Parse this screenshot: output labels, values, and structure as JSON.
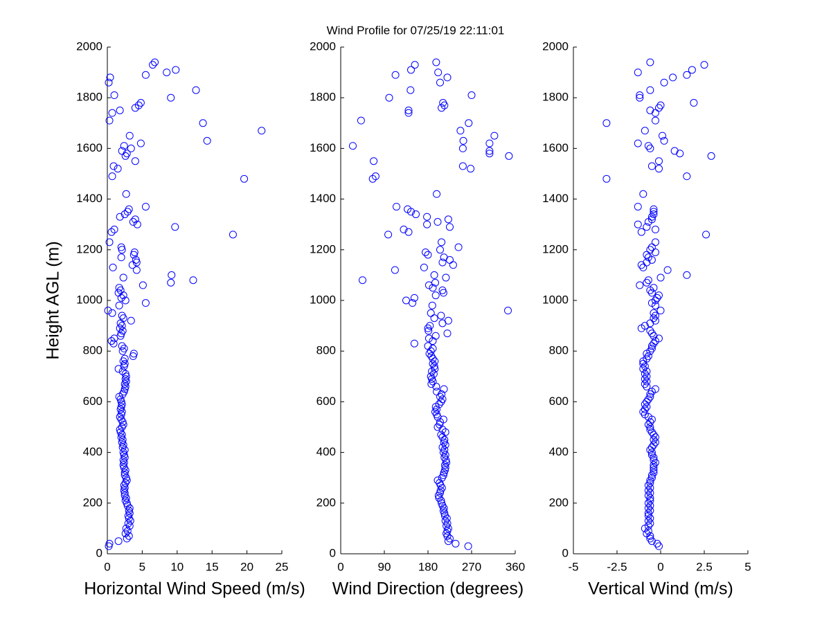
{
  "chart_data": [
    {
      "type": "scatter",
      "ylabel": "Height AGL (m)",
      "xlabel": "Horizontal Wind Speed (m/s)",
      "color": "#0000ff",
      "xlim": [
        0,
        25
      ],
      "xticks": [
        0,
        5,
        10,
        15,
        20,
        25
      ],
      "ylim": [
        0,
        2000
      ],
      "yticks": [
        0,
        200,
        400,
        600,
        800,
        1000,
        1200,
        1400,
        1600,
        1800,
        2000
      ],
      "x": [
        0.2,
        0.3,
        1.6,
        2.8,
        3.1,
        2.6,
        2.9,
        2.7,
        3.2,
        3.0,
        3.3,
        3.1,
        3.0,
        3.2,
        3.1,
        3.2,
        2.9,
        2.8,
        2.6,
        2.7,
        2.5,
        2.5,
        2.4,
        2.5,
        2.4,
        2.6,
        2.8,
        2.7,
        2.5,
        2.5,
        2.6,
        2.4,
        2.3,
        2.4,
        2.3,
        2.5,
        2.4,
        2.3,
        2.5,
        2.2,
        2.3,
        2.1,
        2.2,
        2.0,
        2.1,
        1.9,
        1.8,
        2.1,
        2.3,
        2.2,
        2.0,
        1.8,
        2.0,
        2.1,
        1.9,
        2.0,
        2.1,
        2.0,
        1.9,
        1.7,
        2.2,
        2.4,
        2.5,
        2.6,
        2.5,
        2.7,
        2.6,
        2.7,
        2.6,
        2.2,
        1.6,
        2.4,
        2.5,
        2.3,
        2.5,
        3.7,
        3.8,
        2.2,
        2.4,
        2.1,
        0.9,
        0.6,
        1.0,
        1.9,
        2.0,
        2.2,
        1.8,
        2.1,
        1.9,
        3.4,
        2.3,
        2.1,
        0.7,
        0.1,
        1.7,
        5.5,
        2.6,
        2.0,
        2.3,
        1.6,
        1.9,
        1.7,
        5.1,
        9.1,
        12.3,
        2.3,
        9.2,
        4.2,
        0.8,
        3.6,
        4.2,
        4.1,
        2.0,
        3.8,
        3.9,
        2.1,
        2.0,
        0.3,
        18.0,
        0.6,
        1.0,
        9.7,
        4.3,
        3.7,
        4.0,
        1.8,
        2.5,
        2.9,
        3.1,
        5.5,
        2.7,
        19.6,
        0.7,
        1.5,
        0.9,
        4.0,
        2.6,
        2.8,
        2.1,
        3.4,
        2.4,
        4.8,
        14.3,
        3.2,
        22.1,
        13.7,
        0.3,
        0.7,
        1.8,
        4.0,
        4.5,
        4.8,
        9.1,
        1.0,
        12.7,
        0.2,
        0.4,
        5.5,
        8.5,
        9.8,
        6.5,
        6.8
      ],
      "y": [
        30,
        40,
        50,
        60,
        70,
        80,
        90,
        100,
        110,
        120,
        130,
        140,
        150,
        160,
        170,
        180,
        190,
        200,
        210,
        220,
        230,
        240,
        250,
        260,
        270,
        280,
        290,
        300,
        310,
        320,
        330,
        340,
        350,
        360,
        370,
        380,
        390,
        400,
        410,
        420,
        430,
        440,
        450,
        460,
        470,
        480,
        490,
        500,
        510,
        520,
        530,
        540,
        550,
        560,
        570,
        580,
        590,
        600,
        610,
        620,
        630,
        640,
        650,
        660,
        670,
        680,
        690,
        700,
        710,
        720,
        730,
        740,
        750,
        760,
        770,
        780,
        790,
        800,
        810,
        820,
        830,
        840,
        850,
        860,
        870,
        880,
        890,
        900,
        910,
        920,
        930,
        940,
        950,
        960,
        980,
        990,
        1000,
        1010,
        1020,
        1030,
        1040,
        1050,
        1060,
        1070,
        1080,
        1090,
        1100,
        1120,
        1130,
        1140,
        1150,
        1160,
        1170,
        1180,
        1190,
        1200,
        1210,
        1230,
        1260,
        1270,
        1280,
        1290,
        1300,
        1310,
        1320,
        1330,
        1340,
        1350,
        1360,
        1370,
        1420,
        1480,
        1490,
        1520,
        1530,
        1550,
        1570,
        1580,
        1590,
        1600,
        1610,
        1620,
        1630,
        1650,
        1670,
        1700,
        1710,
        1740,
        1750,
        1760,
        1770,
        1780,
        1800,
        1810,
        1830,
        1860,
        1880,
        1890,
        1900,
        1910,
        1930,
        1940
      ]
    },
    {
      "type": "scatter",
      "title": "Wind Profile for  07/25/19 22:11:01",
      "xlabel": "Wind Direction (degrees)",
      "color": "#0000ff",
      "xlim": [
        0,
        360
      ],
      "xticks": [
        0,
        90,
        180,
        270,
        360
      ],
      "ylim": [
        0,
        2000
      ],
      "yticks": [
        0,
        200,
        400,
        600,
        800,
        1000,
        1200,
        1400,
        1600,
        1800,
        2000
      ],
      "x": [
        263,
        237,
        222,
        225,
        220,
        218,
        220,
        222,
        218,
        220,
        216,
        219,
        215,
        214,
        212,
        213,
        210,
        208,
        207,
        203,
        202,
        205,
        206,
        209,
        206,
        204,
        200,
        209,
        212,
        213,
        215,
        216,
        215,
        218,
        217,
        214,
        216,
        212,
        214,
        210,
        216,
        213,
        214,
        210,
        207,
        216,
        210,
        200,
        204,
        205,
        212,
        200,
        198,
        195,
        198,
        196,
        203,
        207,
        210,
        205,
        208,
        198,
        213,
        197,
        187,
        190,
        188,
        186,
        192,
        188,
        194,
        193,
        190,
        194,
        190,
        187,
        183,
        186,
        190,
        180,
        152,
        190,
        182,
        196,
        220,
        181,
        180,
        184,
        210,
        222,
        193,
        207,
        186,
        345,
        189,
        148,
        135,
        152,
        196,
        212,
        210,
        190,
        182,
        195,
        45,
        217,
        193,
        112,
        172,
        232,
        210,
        225,
        213,
        180,
        175,
        205,
        243,
        208,
        98,
        140,
        130,
        225,
        178,
        200,
        222,
        178,
        155,
        145,
        138,
        115,
        198,
        66,
        72,
        268,
        252,
        68,
        347,
        307,
        307,
        252,
        25,
        307,
        253,
        317,
        247,
        264,
        42,
        140,
        140,
        208,
        214,
        211,
        100,
        270,
        144,
        205,
        220,
        113,
        201,
        145,
        153,
        197
      ],
      "y": [
        30,
        40,
        50,
        60,
        70,
        80,
        90,
        100,
        110,
        120,
        130,
        140,
        150,
        160,
        170,
        180,
        190,
        200,
        210,
        220,
        230,
        240,
        250,
        260,
        270,
        280,
        290,
        300,
        310,
        320,
        330,
        340,
        350,
        360,
        370,
        380,
        390,
        400,
        410,
        420,
        430,
        440,
        450,
        460,
        470,
        480,
        490,
        500,
        510,
        520,
        530,
        540,
        550,
        560,
        570,
        580,
        590,
        600,
        610,
        620,
        630,
        640,
        650,
        660,
        670,
        680,
        690,
        700,
        710,
        720,
        730,
        740,
        750,
        760,
        770,
        780,
        790,
        800,
        810,
        820,
        830,
        840,
        850,
        860,
        870,
        880,
        890,
        900,
        910,
        920,
        930,
        940,
        950,
        960,
        980,
        990,
        1000,
        1010,
        1020,
        1030,
        1040,
        1050,
        1060,
        1070,
        1080,
        1090,
        1100,
        1120,
        1130,
        1140,
        1150,
        1160,
        1170,
        1180,
        1190,
        1200,
        1210,
        1230,
        1260,
        1270,
        1280,
        1290,
        1300,
        1310,
        1320,
        1330,
        1340,
        1350,
        1360,
        1370,
        1420,
        1480,
        1490,
        1520,
        1530,
        1550,
        1570,
        1580,
        1590,
        1600,
        1610,
        1620,
        1630,
        1650,
        1670,
        1700,
        1710,
        1740,
        1750,
        1760,
        1770,
        1780,
        1800,
        1810,
        1830,
        1860,
        1880,
        1890,
        1900,
        1910,
        1930,
        1940
      ]
    },
    {
      "type": "scatter",
      "xlabel": "Vertical Wind (m/s)",
      "color": "#0000ff",
      "xlim": [
        -5,
        5
      ],
      "xticks": [
        -5,
        -2.5,
        0,
        2.5,
        5
      ],
      "ylim": [
        0,
        2000
      ],
      "yticks": [
        0,
        200,
        400,
        600,
        800,
        1000,
        1200,
        1400,
        1600,
        1800,
        2000
      ],
      "x": [
        -0.1,
        -0.2,
        -0.5,
        -0.6,
        -0.6,
        -0.8,
        -0.7,
        -0.9,
        -0.7,
        -0.6,
        -0.7,
        -0.6,
        -0.7,
        -0.7,
        -0.6,
        -0.7,
        -0.6,
        -0.7,
        -0.6,
        -0.6,
        -0.7,
        -0.6,
        -0.7,
        -0.6,
        -0.7,
        -0.6,
        -0.6,
        -0.5,
        -0.5,
        -0.4,
        -0.4,
        -0.4,
        -0.4,
        -0.3,
        -0.4,
        -0.4,
        -0.5,
        -0.5,
        -0.6,
        -0.5,
        -0.4,
        -0.3,
        -0.4,
        -0.3,
        -0.4,
        -0.5,
        -0.6,
        -0.6,
        -0.7,
        -0.6,
        -0.5,
        -0.7,
        -0.9,
        -1.0,
        -0.9,
        -0.8,
        -0.9,
        -0.8,
        -0.7,
        -0.6,
        -0.6,
        -0.5,
        -0.3,
        -0.8,
        -0.9,
        -0.8,
        -0.9,
        -0.8,
        -0.9,
        -0.8,
        -1.0,
        -0.9,
        -1.0,
        -1.0,
        -0.8,
        -0.7,
        -0.8,
        -0.6,
        -0.5,
        -0.5,
        -0.4,
        -0.3,
        -0.1,
        -0.4,
        -0.5,
        -0.6,
        -1.1,
        -0.9,
        -0.6,
        -0.3,
        -0.4,
        -0.3,
        -0.4,
        0.0,
        -0.3,
        -0.5,
        -0.3,
        -0.2,
        -0.1,
        -0.5,
        -0.6,
        -0.4,
        -1.2,
        -0.8,
        -0.7,
        0.0,
        1.5,
        0.4,
        -1.0,
        -1.1,
        -0.8,
        -0.5,
        -0.7,
        -0.8,
        -0.3,
        -0.6,
        -0.5,
        -0.3,
        2.6,
        -1.1,
        -0.3,
        -0.8,
        -1.3,
        -0.7,
        -0.5,
        -0.5,
        -0.4,
        -0.4,
        -0.4,
        -1.3,
        -1.0,
        -3.1,
        1.5,
        -0.1,
        -0.5,
        -0.1,
        2.9,
        1.1,
        0.8,
        -0.6,
        -0.7,
        -1.3,
        0.2,
        0.1,
        -0.9,
        -3.1,
        -0.3,
        -0.3,
        -0.6,
        -0.1,
        0.0,
        1.9,
        -1.2,
        -1.2,
        -0.6,
        0.2,
        0.7,
        1.5,
        -1.3,
        1.8,
        2.5,
        -0.6
      ],
      "y": [
        30,
        40,
        50,
        60,
        70,
        80,
        90,
        100,
        110,
        120,
        130,
        140,
        150,
        160,
        170,
        180,
        190,
        200,
        210,
        220,
        230,
        240,
        250,
        260,
        270,
        280,
        290,
        300,
        310,
        320,
        330,
        340,
        350,
        360,
        370,
        380,
        390,
        400,
        410,
        420,
        430,
        440,
        450,
        460,
        470,
        480,
        490,
        500,
        510,
        520,
        530,
        540,
        550,
        560,
        570,
        580,
        590,
        600,
        610,
        620,
        630,
        640,
        650,
        660,
        670,
        680,
        690,
        700,
        710,
        720,
        730,
        740,
        750,
        760,
        770,
        780,
        790,
        800,
        810,
        820,
        830,
        840,
        850,
        860,
        870,
        880,
        890,
        900,
        910,
        920,
        930,
        940,
        950,
        960,
        980,
        990,
        1000,
        1010,
        1020,
        1030,
        1040,
        1050,
        1060,
        1070,
        1080,
        1090,
        1100,
        1120,
        1130,
        1140,
        1150,
        1160,
        1170,
        1180,
        1190,
        1200,
        1210,
        1230,
        1260,
        1270,
        1280,
        1290,
        1300,
        1310,
        1320,
        1330,
        1340,
        1350,
        1360,
        1370,
        1420,
        1480,
        1490,
        1520,
        1530,
        1550,
        1570,
        1580,
        1590,
        1600,
        1610,
        1620,
        1630,
        1650,
        1670,
        1700,
        1710,
        1740,
        1750,
        1760,
        1770,
        1780,
        1800,
        1810,
        1830,
        1860,
        1880,
        1890,
        1900,
        1910,
        1930,
        1940
      ]
    }
  ]
}
